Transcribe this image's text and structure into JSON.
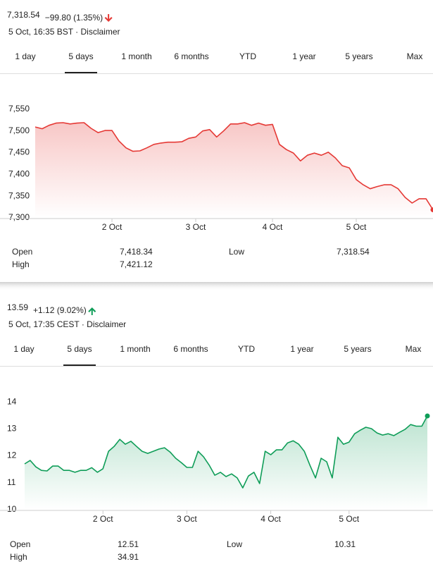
{
  "chart_data": [
    {
      "type": "line",
      "price": "7,318.54",
      "change": "−99.80 (1.35%)",
      "direction": "down",
      "timestamp": "5 Oct, 16:35 BST · Disclaimer",
      "tabs": [
        "1 day",
        "5 days",
        "1 month",
        "6 months",
        "YTD",
        "1 year",
        "5 years",
        "Max"
      ],
      "selected_tab": 1,
      "categories": [
        null,
        null,
        null,
        null,
        null,
        null,
        null,
        null,
        null,
        null,
        null,
        "2 Oct",
        null,
        null,
        null,
        null,
        null,
        null,
        null,
        null,
        null,
        null,
        null,
        "3 Oct",
        null,
        null,
        null,
        null,
        null,
        null,
        null,
        null,
        null,
        null,
        "4 Oct",
        null,
        null,
        null,
        null,
        null,
        null,
        null,
        null,
        null,
        null,
        null,
        "5 Oct",
        null,
        null,
        null,
        null,
        null,
        null,
        null,
        null,
        null,
        null,
        null
      ],
      "series": [
        {
          "color": "#e53935",
          "values": [
            7509,
            7505,
            7513,
            7518,
            7519,
            7516,
            7518,
            7519,
            7506,
            7496,
            7501,
            7501,
            7477,
            7461,
            7453,
            7454,
            7461,
            7469,
            7472,
            7474,
            7474,
            7475,
            7483,
            7486,
            7500,
            7503,
            7486,
            7500,
            7516,
            7516,
            7519,
            7513,
            7518,
            7513,
            7515,
            7469,
            7457,
            7449,
            7431,
            7444,
            7449,
            7444,
            7451,
            7438,
            7420,
            7415,
            7388,
            7376,
            7367,
            7372,
            7376,
            7376,
            7367,
            7347,
            7334,
            7344,
            7344,
            7318.54
          ]
        }
      ],
      "ylim": [
        7300,
        7600
      ],
      "yticks": [
        {
          "value": 7300,
          "label": "7,300"
        },
        {
          "value": 7350,
          "label": "7,350"
        },
        {
          "value": 7400,
          "label": "7,400"
        },
        {
          "value": 7450,
          "label": "7,450"
        },
        {
          "value": 7500,
          "label": "7,500"
        },
        {
          "value": 7550,
          "label": "7,550"
        }
      ],
      "grid": false,
      "stats": [
        [
          "Open",
          "7,418.34",
          "Low",
          "7,318.54"
        ],
        [
          "High",
          "7,421.12"
        ]
      ]
    },
    {
      "type": "line",
      "price": "13.59",
      "change": "+1.12 (9.02%)",
      "direction": "up",
      "timestamp": "5 Oct, 17:35 CEST · Disclaimer",
      "tabs": [
        "1 day",
        "5 days",
        "1 month",
        "6 months",
        "YTD",
        "1 year",
        "5 years",
        "Max"
      ],
      "selected_tab": 1,
      "categories": [
        null,
        null,
        null,
        null,
        null,
        null,
        null,
        null,
        null,
        null,
        null,
        null,
        null,
        null,
        "2 Oct",
        null,
        null,
        null,
        null,
        null,
        null,
        null,
        null,
        null,
        null,
        null,
        null,
        null,
        null,
        "3 Oct",
        null,
        null,
        null,
        null,
        null,
        null,
        null,
        null,
        null,
        null,
        null,
        null,
        null,
        null,
        "4 Oct",
        null,
        null,
        null,
        null,
        null,
        null,
        null,
        null,
        null,
        null,
        null,
        null,
        null,
        "5 Oct",
        null,
        null,
        null,
        null,
        null,
        null,
        null,
        null,
        null,
        null,
        null,
        null,
        null,
        null
      ],
      "series": [
        {
          "color": "#0f9d58",
          "values": [
            11.7,
            11.83,
            11.59,
            11.46,
            11.44,
            11.62,
            11.62,
            11.46,
            11.46,
            11.39,
            11.46,
            11.46,
            11.56,
            11.39,
            11.52,
            12.17,
            12.35,
            12.61,
            12.43,
            12.54,
            12.35,
            12.17,
            12.09,
            12.17,
            12.25,
            12.3,
            12.14,
            11.91,
            11.75,
            11.57,
            11.57,
            12.17,
            11.96,
            11.65,
            11.28,
            11.39,
            11.23,
            11.33,
            11.18,
            10.81,
            11.25,
            11.39,
            10.97,
            12.17,
            12.04,
            12.22,
            12.22,
            12.48,
            12.56,
            12.43,
            12.17,
            11.65,
            11.18,
            11.91,
            11.78,
            11.18,
            12.69,
            12.43,
            12.51,
            12.82,
            12.95,
            13.06,
            13.01,
            12.85,
            12.77,
            12.82,
            12.75,
            12.87,
            12.98,
            13.16,
            13.1,
            13.1,
            13.48
          ]
        }
      ],
      "ylim": [
        10,
        14.5
      ],
      "yticks": [
        10,
        11,
        12,
        13,
        14
      ],
      "grid": false,
      "stats": [
        [
          "Open",
          "12.51",
          "Low",
          "10.31"
        ],
        [
          "High",
          "34.91"
        ]
      ]
    }
  ]
}
